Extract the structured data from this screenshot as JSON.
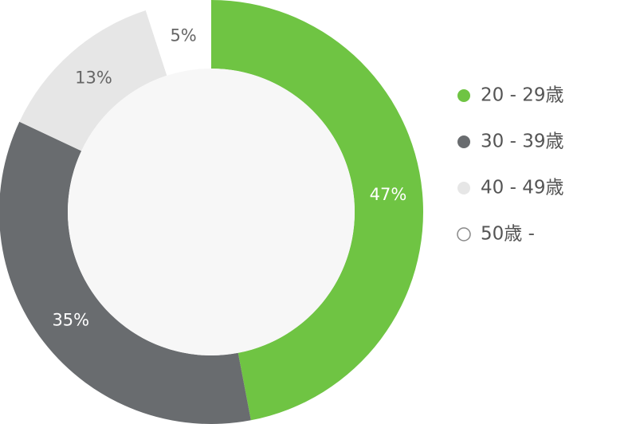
{
  "chart_data": {
    "type": "donut",
    "categories": [
      "20 - 29歳",
      "30 - 39歳",
      "40 - 49歳",
      "50歳 -"
    ],
    "values": [
      47,
      35,
      13,
      5
    ],
    "value_labels": [
      "47%",
      "35%",
      "13%",
      "5%"
    ],
    "colors": [
      "#6fc443",
      "#696c6f",
      "#e6e6e6",
      "#ffffff"
    ],
    "legend": "right"
  }
}
